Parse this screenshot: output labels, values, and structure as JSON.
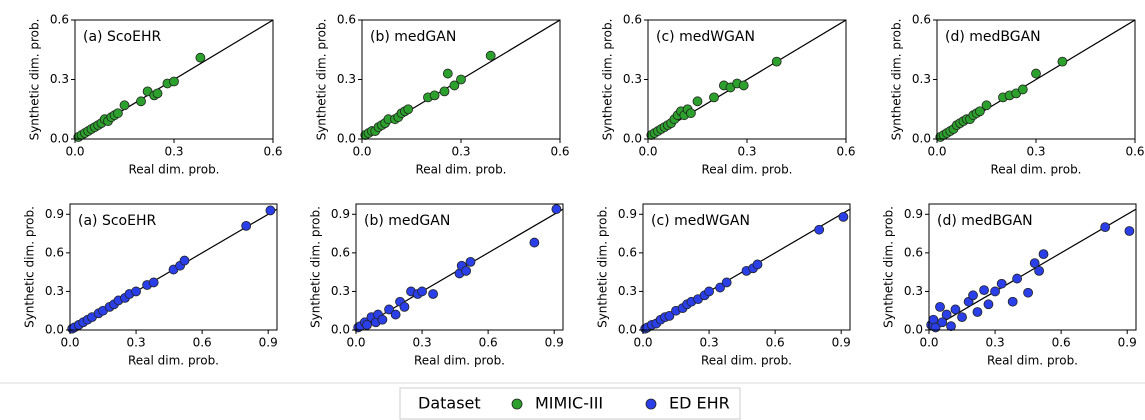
{
  "legend_title": "Dataset",
  "chart_data": [
    {
      "type": "scatter",
      "title": "(a) ScoEHR",
      "xlabel": "Real dim. prob.",
      "ylabel": "Synthetic dim. prob.",
      "xlim": [
        0,
        0.6
      ],
      "ylim": [
        0,
        0.6
      ],
      "xticks": [
        {
          "value": 0,
          "label": "0.0"
        },
        0.3,
        0.6
      ],
      "yticks": [
        {
          "value": 0,
          "label": "0.0"
        },
        0.3,
        0.6
      ],
      "series": [
        {
          "name": "MIMIC-III",
          "color": "#2ca02c",
          "x": [
            0.01,
            0.02,
            0.03,
            0.04,
            0.05,
            0.06,
            0.07,
            0.08,
            0.09,
            0.1,
            0.11,
            0.12,
            0.13,
            0.15,
            0.2,
            0.22,
            0.24,
            0.25,
            0.28,
            0.3,
            0.38
          ],
          "values": [
            0.01,
            0.02,
            0.03,
            0.04,
            0.05,
            0.06,
            0.07,
            0.08,
            0.1,
            0.09,
            0.11,
            0.12,
            0.13,
            0.17,
            0.19,
            0.24,
            0.22,
            0.23,
            0.28,
            0.29,
            0.41
          ]
        }
      ]
    },
    {
      "type": "scatter",
      "title": "(b) medGAN",
      "xlabel": "Real dim. prob.",
      "ylabel": "Synthetic dim. prob.",
      "xlim": [
        0,
        0.6
      ],
      "ylim": [
        0,
        0.6
      ],
      "xticks": [
        {
          "value": 0,
          "label": "0.0"
        },
        0.3,
        0.6
      ],
      "yticks": [
        {
          "value": 0,
          "label": "0.0"
        },
        0.3,
        0.6
      ],
      "series": [
        {
          "name": "MIMIC-III",
          "color": "#2ca02c",
          "x": [
            0.01,
            0.02,
            0.03,
            0.04,
            0.05,
            0.06,
            0.07,
            0.08,
            0.1,
            0.11,
            0.12,
            0.13,
            0.14,
            0.2,
            0.22,
            0.25,
            0.26,
            0.28,
            0.3,
            0.39
          ],
          "values": [
            0.02,
            0.03,
            0.04,
            0.04,
            0.06,
            0.07,
            0.08,
            0.1,
            0.1,
            0.11,
            0.13,
            0.14,
            0.15,
            0.21,
            0.22,
            0.24,
            0.33,
            0.27,
            0.3,
            0.42
          ]
        }
      ]
    },
    {
      "type": "scatter",
      "title": "(c) medWGAN",
      "xlabel": "Real dim. prob.",
      "ylabel": "Synthetic dim. prob.",
      "xlim": [
        0,
        0.6
      ],
      "ylim": [
        0,
        0.6
      ],
      "xticks": [
        {
          "value": 0,
          "label": "0.0"
        },
        0.3,
        0.6
      ],
      "yticks": [
        {
          "value": 0,
          "label": "0.0"
        },
        0.3,
        0.6
      ],
      "series": [
        {
          "name": "MIMIC-III",
          "color": "#2ca02c",
          "x": [
            0.01,
            0.02,
            0.03,
            0.04,
            0.05,
            0.06,
            0.07,
            0.08,
            0.09,
            0.1,
            0.11,
            0.12,
            0.13,
            0.15,
            0.2,
            0.23,
            0.25,
            0.27,
            0.29,
            0.39
          ],
          "values": [
            0.02,
            0.03,
            0.04,
            0.05,
            0.06,
            0.07,
            0.08,
            0.1,
            0.12,
            0.14,
            0.12,
            0.15,
            0.13,
            0.19,
            0.21,
            0.27,
            0.26,
            0.28,
            0.27,
            0.39
          ]
        }
      ]
    },
    {
      "type": "scatter",
      "title": "(d) medBGAN",
      "xlabel": "Real dim. prob.",
      "ylabel": "Synthetic dim. prob.",
      "xlim": [
        0,
        0.6
      ],
      "ylim": [
        0,
        0.6
      ],
      "xticks": [
        {
          "value": 0,
          "label": "0.0"
        },
        0.3,
        0.6
      ],
      "yticks": [
        {
          "value": 0,
          "label": "0.0"
        },
        0.3,
        0.6
      ],
      "series": [
        {
          "name": "MIMIC-III",
          "color": "#2ca02c",
          "x": [
            0.01,
            0.02,
            0.03,
            0.04,
            0.05,
            0.06,
            0.07,
            0.08,
            0.09,
            0.1,
            0.11,
            0.12,
            0.13,
            0.15,
            0.2,
            0.22,
            0.24,
            0.26,
            0.3,
            0.38
          ],
          "values": [
            0.01,
            0.02,
            0.03,
            0.04,
            0.05,
            0.07,
            0.08,
            0.09,
            0.1,
            0.1,
            0.12,
            0.13,
            0.14,
            0.17,
            0.21,
            0.22,
            0.23,
            0.25,
            0.33,
            0.39
          ]
        }
      ]
    },
    {
      "type": "scatter",
      "title": "(a) ScoEHR",
      "xlabel": "Real dim. prob.",
      "ylabel": "Synthetic dim. prob.",
      "xlim": [
        0,
        0.94
      ],
      "ylim": [
        0,
        0.98
      ],
      "xticks": [
        {
          "value": 0,
          "label": "0.0"
        },
        0.3,
        0.6,
        0.9
      ],
      "yticks": [
        {
          "value": 0,
          "label": "0.0"
        },
        0.3,
        0.6,
        0.9
      ],
      "series": [
        {
          "name": "ED EHR",
          "color": "#2b3fe8",
          "x": [
            0.01,
            0.02,
            0.04,
            0.06,
            0.08,
            0.1,
            0.13,
            0.15,
            0.18,
            0.2,
            0.22,
            0.25,
            0.27,
            0.3,
            0.35,
            0.38,
            0.47,
            0.5,
            0.52,
            0.8,
            0.91
          ],
          "values": [
            0.01,
            0.02,
            0.04,
            0.06,
            0.08,
            0.1,
            0.13,
            0.15,
            0.18,
            0.2,
            0.23,
            0.25,
            0.28,
            0.3,
            0.35,
            0.37,
            0.47,
            0.5,
            0.54,
            0.81,
            0.93
          ]
        }
      ]
    },
    {
      "type": "scatter",
      "title": "(b) medGAN",
      "xlabel": "Real dim. prob.",
      "ylabel": "Synthetic dim. prob.",
      "xlim": [
        0,
        0.94
      ],
      "ylim": [
        0,
        0.98
      ],
      "xticks": [
        {
          "value": 0,
          "label": "0.0"
        },
        0.3,
        0.6,
        0.9
      ],
      "yticks": [
        {
          "value": 0,
          "label": "0.0"
        },
        0.3,
        0.6,
        0.9
      ],
      "series": [
        {
          "name": "ED EHR",
          "color": "#2b3fe8",
          "x": [
            0.01,
            0.02,
            0.04,
            0.05,
            0.07,
            0.09,
            0.1,
            0.12,
            0.15,
            0.18,
            0.2,
            0.22,
            0.25,
            0.28,
            0.3,
            0.35,
            0.47,
            0.48,
            0.5,
            0.52,
            0.81,
            0.91
          ],
          "values": [
            0.02,
            0.03,
            0.06,
            0.04,
            0.1,
            0.06,
            0.12,
            0.08,
            0.16,
            0.12,
            0.22,
            0.18,
            0.3,
            0.28,
            0.3,
            0.28,
            0.44,
            0.5,
            0.46,
            0.53,
            0.68,
            0.94
          ]
        }
      ]
    },
    {
      "type": "scatter",
      "title": "(c) medWGAN",
      "xlabel": "Real dim. prob.",
      "ylabel": "Synthetic dim. prob.",
      "xlim": [
        0,
        0.94
      ],
      "ylim": [
        0,
        0.98
      ],
      "xticks": [
        {
          "value": 0,
          "label": "0.0"
        },
        0.3,
        0.6,
        0.9
      ],
      "yticks": [
        {
          "value": 0,
          "label": "0.0"
        },
        0.3,
        0.6,
        0.9
      ],
      "series": [
        {
          "name": "ED EHR",
          "color": "#2b3fe8",
          "x": [
            0.01,
            0.02,
            0.04,
            0.06,
            0.08,
            0.1,
            0.12,
            0.15,
            0.18,
            0.2,
            0.22,
            0.25,
            0.28,
            0.3,
            0.35,
            0.38,
            0.47,
            0.5,
            0.52,
            0.8,
            0.91
          ],
          "values": [
            0.01,
            0.02,
            0.04,
            0.05,
            0.08,
            0.1,
            0.11,
            0.15,
            0.17,
            0.2,
            0.22,
            0.24,
            0.27,
            0.3,
            0.33,
            0.37,
            0.46,
            0.48,
            0.51,
            0.78,
            0.88
          ]
        }
      ]
    },
    {
      "type": "scatter",
      "title": "(d) medBGAN",
      "xlabel": "Real dim. prob.",
      "ylabel": "Synthetic dim. prob.",
      "xlim": [
        0,
        0.94
      ],
      "ylim": [
        0,
        0.98
      ],
      "xticks": [
        {
          "value": 0,
          "label": "0.0"
        },
        0.3,
        0.6,
        0.9
      ],
      "yticks": [
        {
          "value": 0,
          "label": "0.0"
        },
        0.3,
        0.6,
        0.9
      ],
      "series": [
        {
          "name": "ED EHR",
          "color": "#2b3fe8",
          "x": [
            0.01,
            0.02,
            0.03,
            0.05,
            0.06,
            0.08,
            0.1,
            0.12,
            0.15,
            0.18,
            0.2,
            0.22,
            0.25,
            0.27,
            0.3,
            0.33,
            0.38,
            0.4,
            0.45,
            0.48,
            0.5,
            0.52,
            0.8,
            0.91
          ],
          "values": [
            0.04,
            0.08,
            0.02,
            0.18,
            0.06,
            0.12,
            0.03,
            0.16,
            0.1,
            0.22,
            0.27,
            0.14,
            0.31,
            0.2,
            0.3,
            0.36,
            0.22,
            0.4,
            0.29,
            0.52,
            0.46,
            0.59,
            0.8,
            0.77
          ]
        }
      ]
    }
  ]
}
